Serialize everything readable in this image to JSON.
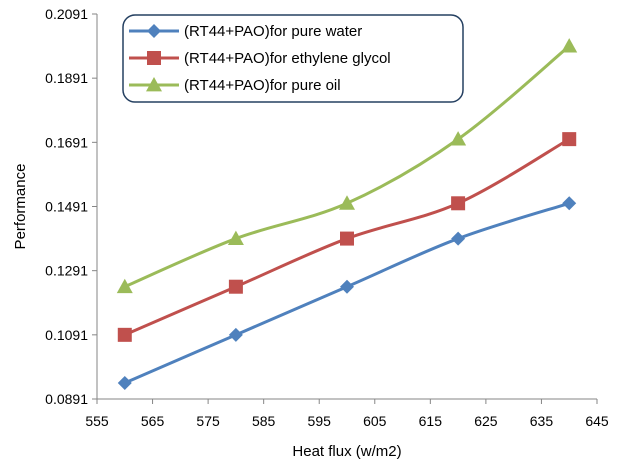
{
  "chart_data": {
    "type": "line",
    "title": "",
    "xlabel": "Heat flux (w/m2)",
    "ylabel": "Performance",
    "xlim": [
      555,
      645
    ],
    "ylim": [
      0.0891,
      0.2091
    ],
    "x_ticks": [
      "555",
      "565",
      "575",
      "585",
      "595",
      "605",
      "615",
      "625",
      "635",
      "645"
    ],
    "y_ticks": [
      "0.0891",
      "0.1091",
      "0.1291",
      "0.1491",
      "0.1691",
      "0.1891",
      "0.2091"
    ],
    "grid": "none",
    "legend_position": "top-left",
    "x": [
      560,
      580,
      600,
      620,
      640
    ],
    "series": [
      {
        "name": "(RT44+PAO)for pure water",
        "values": [
          0.0941,
          0.1091,
          0.1241,
          0.1391,
          0.1501
        ],
        "color": "#4F81BD",
        "marker": "diamond"
      },
      {
        "name": "(RT44+PAO)for ethylene glycol",
        "values": [
          0.1091,
          0.1241,
          0.1391,
          0.1501,
          0.1701
        ],
        "color": "#C0504D",
        "marker": "square"
      },
      {
        "name": "(RT44+PAO)for pure oil",
        "values": [
          0.1241,
          0.1391,
          0.1501,
          0.1701,
          0.1991
        ],
        "color": "#9BBB59",
        "marker": "triangle"
      }
    ]
  }
}
